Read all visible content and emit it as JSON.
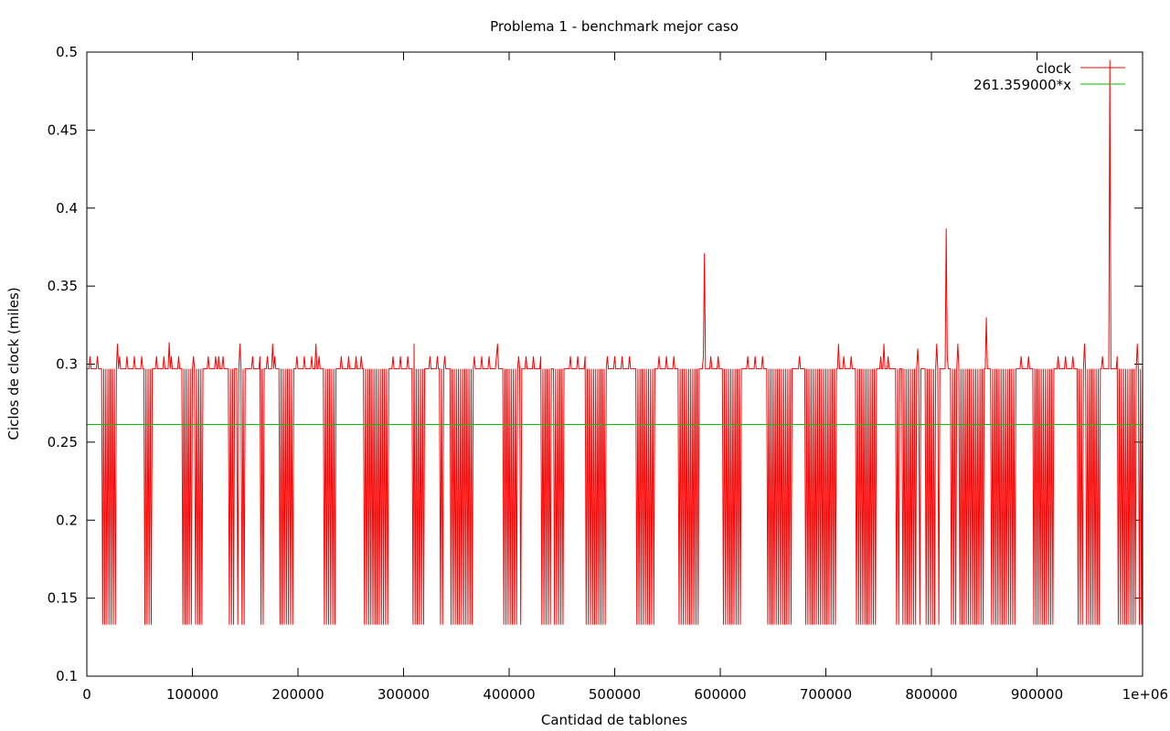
{
  "chart_data": {
    "type": "line",
    "title": "Problema 1 - benchmark mejor caso",
    "xlabel": "Cantidad de tablones",
    "ylabel": "Ciclos de clock (miles)",
    "xlim": [
      0,
      1000000
    ],
    "ylim": [
      0.1,
      0.5
    ],
    "xticks": [
      0,
      100000,
      200000,
      300000,
      400000,
      500000,
      600000,
      700000,
      800000,
      900000,
      1000000
    ],
    "xtick_labels": [
      "0",
      "100000",
      "200000",
      "300000",
      "400000",
      "500000",
      "600000",
      "700000",
      "800000",
      "900000",
      "1e+06"
    ],
    "yticks": [
      0.1,
      0.15,
      0.2,
      0.25,
      0.3,
      0.35,
      0.4,
      0.45,
      0.5
    ],
    "ytick_labels": [
      "0.1",
      "0.15",
      "0.2",
      "0.25",
      "0.3",
      "0.35",
      "0.4",
      "0.45",
      "0.5"
    ],
    "grid": false,
    "legend_position": "top-right",
    "series": [
      {
        "name": "clock",
        "color": "#ff0000",
        "baseline": 0.297,
        "high": 0.305,
        "low": 0.133,
        "x_step": 1000,
        "low_blocks": [
          [
            14000,
            27000
          ],
          [
            55000,
            62000
          ],
          [
            91000,
            100000
          ],
          [
            103000,
            110000
          ],
          [
            135000,
            140000
          ],
          [
            143000,
            150000
          ],
          [
            165000,
            167000
          ],
          [
            182000,
            195000
          ],
          [
            225000,
            235000
          ],
          [
            262000,
            285000
          ],
          [
            308000,
            320000
          ],
          [
            335000,
            337000
          ],
          [
            345000,
            365000
          ],
          [
            395000,
            408000
          ],
          [
            410000,
            412000
          ],
          [
            430000,
            440000
          ],
          [
            443000,
            452000
          ],
          [
            473000,
            492000
          ],
          [
            520000,
            538000
          ],
          [
            560000,
            580000
          ],
          [
            602000,
            620000
          ],
          [
            645000,
            668000
          ],
          [
            680000,
            710000
          ],
          [
            728000,
            748000
          ],
          [
            766000,
            770000
          ],
          [
            772000,
            790000
          ],
          [
            794000,
            808000
          ],
          [
            818000,
            850000
          ],
          [
            857000,
            880000
          ],
          [
            897000,
            915000
          ],
          [
            938000,
            960000
          ],
          [
            977000,
            1000000
          ]
        ],
        "low_period": 2000,
        "spike_period": 7000,
        "spikes": [
          [
            29000,
            0.313
          ],
          [
            78000,
            0.314
          ],
          [
            125000,
            0.305
          ],
          [
            145000,
            0.313
          ],
          [
            176000,
            0.313
          ],
          [
            217000,
            0.313
          ],
          [
            260000,
            0.305
          ],
          [
            310000,
            0.313
          ],
          [
            389000,
            0.313
          ],
          [
            430000,
            0.305
          ],
          [
            585000,
            0.371
          ],
          [
            712000,
            0.313
          ],
          [
            755000,
            0.313
          ],
          [
            787000,
            0.31
          ],
          [
            805000,
            0.313
          ],
          [
            814000,
            0.387
          ],
          [
            825000,
            0.313
          ],
          [
            852000,
            0.33
          ],
          [
            945000,
            0.313
          ],
          [
            969000,
            0.495
          ],
          [
            995000,
            0.313
          ]
        ]
      },
      {
        "name": "261.359000*x",
        "color": "#00c000",
        "constant": 0.26136
      }
    ]
  }
}
